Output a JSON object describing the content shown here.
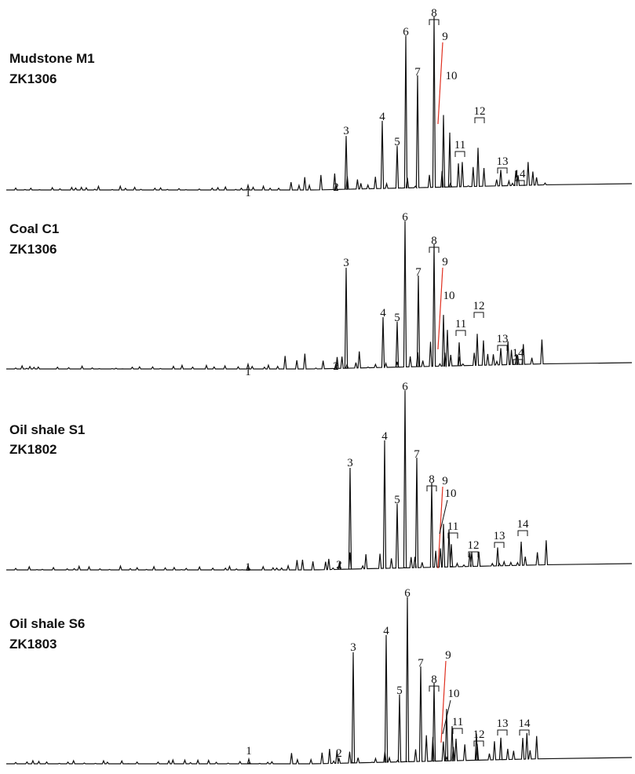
{
  "panels": [
    {
      "sample": "Mudstone M1",
      "well": "ZK1306",
      "peak_labels": [
        "1",
        "2",
        "3",
        "4",
        "5",
        "6",
        "7",
        "8",
        "9",
        "10",
        "11",
        "12",
        "13",
        "14"
      ]
    },
    {
      "sample": "Coal  C1",
      "well": "ZK1306",
      "peak_labels": [
        "1",
        "2",
        "3",
        "4",
        "5",
        "6",
        "7",
        "8",
        "9",
        "10",
        "11",
        "12",
        "13",
        "14"
      ]
    },
    {
      "sample": "Oil shale S1",
      "well": "ZK1802",
      "peak_labels": [
        "1",
        "2",
        "3",
        "4",
        "5",
        "6",
        "7",
        "8",
        "9",
        "10",
        "11",
        "12",
        "13",
        "14"
      ]
    },
    {
      "sample": "Oil shale S6",
      "well": "ZK1803",
      "peak_labels": [
        "1",
        "2",
        "3",
        "4",
        "5",
        "6",
        "7",
        "8",
        "9",
        "10",
        "11",
        "12",
        "13",
        "14"
      ]
    }
  ]
}
